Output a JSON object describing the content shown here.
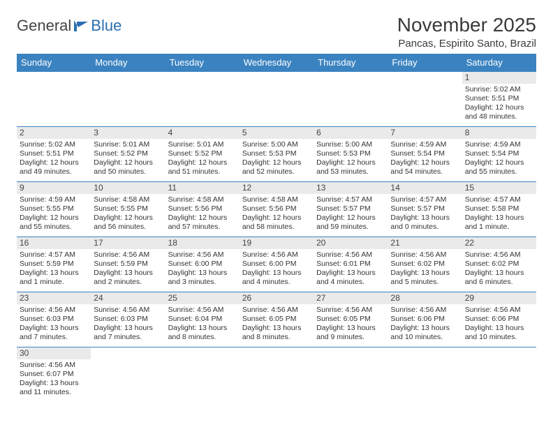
{
  "logo": {
    "text1": "General",
    "text2": "Blue"
  },
  "header": {
    "title": "November 2025",
    "location": "Pancas, Espirito Santo, Brazil"
  },
  "colors": {
    "header_bg": "#3b83c0",
    "header_fg": "#ffffff",
    "day_bg": "#eaeaea",
    "border": "#3b83c0"
  },
  "weekdays": [
    "Sunday",
    "Monday",
    "Tuesday",
    "Wednesday",
    "Thursday",
    "Friday",
    "Saturday"
  ],
  "weeks": [
    [
      null,
      null,
      null,
      null,
      null,
      null,
      {
        "n": "1",
        "sunrise": "Sunrise: 5:02 AM",
        "sunset": "Sunset: 5:51 PM",
        "day1": "Daylight: 12 hours",
        "day2": "and 48 minutes."
      }
    ],
    [
      {
        "n": "2",
        "sunrise": "Sunrise: 5:02 AM",
        "sunset": "Sunset: 5:51 PM",
        "day1": "Daylight: 12 hours",
        "day2": "and 49 minutes."
      },
      {
        "n": "3",
        "sunrise": "Sunrise: 5:01 AM",
        "sunset": "Sunset: 5:52 PM",
        "day1": "Daylight: 12 hours",
        "day2": "and 50 minutes."
      },
      {
        "n": "4",
        "sunrise": "Sunrise: 5:01 AM",
        "sunset": "Sunset: 5:52 PM",
        "day1": "Daylight: 12 hours",
        "day2": "and 51 minutes."
      },
      {
        "n": "5",
        "sunrise": "Sunrise: 5:00 AM",
        "sunset": "Sunset: 5:53 PM",
        "day1": "Daylight: 12 hours",
        "day2": "and 52 minutes."
      },
      {
        "n": "6",
        "sunrise": "Sunrise: 5:00 AM",
        "sunset": "Sunset: 5:53 PM",
        "day1": "Daylight: 12 hours",
        "day2": "and 53 minutes."
      },
      {
        "n": "7",
        "sunrise": "Sunrise: 4:59 AM",
        "sunset": "Sunset: 5:54 PM",
        "day1": "Daylight: 12 hours",
        "day2": "and 54 minutes."
      },
      {
        "n": "8",
        "sunrise": "Sunrise: 4:59 AM",
        "sunset": "Sunset: 5:54 PM",
        "day1": "Daylight: 12 hours",
        "day2": "and 55 minutes."
      }
    ],
    [
      {
        "n": "9",
        "sunrise": "Sunrise: 4:59 AM",
        "sunset": "Sunset: 5:55 PM",
        "day1": "Daylight: 12 hours",
        "day2": "and 55 minutes."
      },
      {
        "n": "10",
        "sunrise": "Sunrise: 4:58 AM",
        "sunset": "Sunset: 5:55 PM",
        "day1": "Daylight: 12 hours",
        "day2": "and 56 minutes."
      },
      {
        "n": "11",
        "sunrise": "Sunrise: 4:58 AM",
        "sunset": "Sunset: 5:56 PM",
        "day1": "Daylight: 12 hours",
        "day2": "and 57 minutes."
      },
      {
        "n": "12",
        "sunrise": "Sunrise: 4:58 AM",
        "sunset": "Sunset: 5:56 PM",
        "day1": "Daylight: 12 hours",
        "day2": "and 58 minutes."
      },
      {
        "n": "13",
        "sunrise": "Sunrise: 4:57 AM",
        "sunset": "Sunset: 5:57 PM",
        "day1": "Daylight: 12 hours",
        "day2": "and 59 minutes."
      },
      {
        "n": "14",
        "sunrise": "Sunrise: 4:57 AM",
        "sunset": "Sunset: 5:57 PM",
        "day1": "Daylight: 13 hours",
        "day2": "and 0 minutes."
      },
      {
        "n": "15",
        "sunrise": "Sunrise: 4:57 AM",
        "sunset": "Sunset: 5:58 PM",
        "day1": "Daylight: 13 hours",
        "day2": "and 1 minute."
      }
    ],
    [
      {
        "n": "16",
        "sunrise": "Sunrise: 4:57 AM",
        "sunset": "Sunset: 5:59 PM",
        "day1": "Daylight: 13 hours",
        "day2": "and 1 minute."
      },
      {
        "n": "17",
        "sunrise": "Sunrise: 4:56 AM",
        "sunset": "Sunset: 5:59 PM",
        "day1": "Daylight: 13 hours",
        "day2": "and 2 minutes."
      },
      {
        "n": "18",
        "sunrise": "Sunrise: 4:56 AM",
        "sunset": "Sunset: 6:00 PM",
        "day1": "Daylight: 13 hours",
        "day2": "and 3 minutes."
      },
      {
        "n": "19",
        "sunrise": "Sunrise: 4:56 AM",
        "sunset": "Sunset: 6:00 PM",
        "day1": "Daylight: 13 hours",
        "day2": "and 4 minutes."
      },
      {
        "n": "20",
        "sunrise": "Sunrise: 4:56 AM",
        "sunset": "Sunset: 6:01 PM",
        "day1": "Daylight: 13 hours",
        "day2": "and 4 minutes."
      },
      {
        "n": "21",
        "sunrise": "Sunrise: 4:56 AM",
        "sunset": "Sunset: 6:02 PM",
        "day1": "Daylight: 13 hours",
        "day2": "and 5 minutes."
      },
      {
        "n": "22",
        "sunrise": "Sunrise: 4:56 AM",
        "sunset": "Sunset: 6:02 PM",
        "day1": "Daylight: 13 hours",
        "day2": "and 6 minutes."
      }
    ],
    [
      {
        "n": "23",
        "sunrise": "Sunrise: 4:56 AM",
        "sunset": "Sunset: 6:03 PM",
        "day1": "Daylight: 13 hours",
        "day2": "and 7 minutes."
      },
      {
        "n": "24",
        "sunrise": "Sunrise: 4:56 AM",
        "sunset": "Sunset: 6:03 PM",
        "day1": "Daylight: 13 hours",
        "day2": "and 7 minutes."
      },
      {
        "n": "25",
        "sunrise": "Sunrise: 4:56 AM",
        "sunset": "Sunset: 6:04 PM",
        "day1": "Daylight: 13 hours",
        "day2": "and 8 minutes."
      },
      {
        "n": "26",
        "sunrise": "Sunrise: 4:56 AM",
        "sunset": "Sunset: 6:05 PM",
        "day1": "Daylight: 13 hours",
        "day2": "and 8 minutes."
      },
      {
        "n": "27",
        "sunrise": "Sunrise: 4:56 AM",
        "sunset": "Sunset: 6:05 PM",
        "day1": "Daylight: 13 hours",
        "day2": "and 9 minutes."
      },
      {
        "n": "28",
        "sunrise": "Sunrise: 4:56 AM",
        "sunset": "Sunset: 6:06 PM",
        "day1": "Daylight: 13 hours",
        "day2": "and 10 minutes."
      },
      {
        "n": "29",
        "sunrise": "Sunrise: 4:56 AM",
        "sunset": "Sunset: 6:06 PM",
        "day1": "Daylight: 13 hours",
        "day2": "and 10 minutes."
      }
    ],
    [
      {
        "n": "30",
        "sunrise": "Sunrise: 4:56 AM",
        "sunset": "Sunset: 6:07 PM",
        "day1": "Daylight: 13 hours",
        "day2": "and 11 minutes."
      },
      null,
      null,
      null,
      null,
      null,
      null
    ]
  ]
}
